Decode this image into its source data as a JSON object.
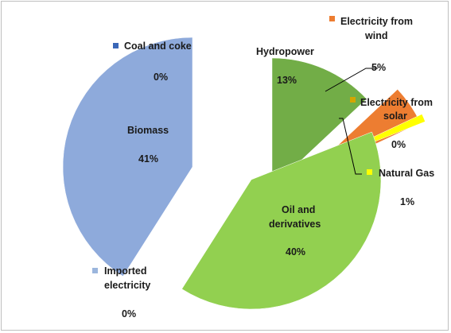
{
  "chart_data": {
    "type": "pie",
    "exploded": true,
    "slices": [
      {
        "label": "Coal and coke",
        "value": 0,
        "value_label": "0%",
        "color": "#3a67b8"
      },
      {
        "label": "Hydropower",
        "value": 13,
        "value_label": "13%",
        "color": "#72ad47"
      },
      {
        "label": "Electricity from wind",
        "value": 5,
        "value_label": "5%",
        "color": "#ed7d31"
      },
      {
        "label": "Electricity from solar",
        "value": 0,
        "value_label": "0%",
        "color": "#d4a500"
      },
      {
        "label": "Natural Gas",
        "value": 1,
        "value_label": "1%",
        "color": "#ffff00"
      },
      {
        "label": "Oil and derivatives",
        "value": 40,
        "value_label": "40%",
        "color": "#92d050"
      },
      {
        "label": "Imported electricity",
        "value": 0,
        "value_label": "0%",
        "color": "#9bb6dd"
      },
      {
        "label": "Biomass",
        "value": 41,
        "value_label": "41%",
        "color": "#8eaadb"
      }
    ]
  },
  "labels": {
    "coal_name": "Coal and coke",
    "coal_value": "0%",
    "hydro_name": "Hydropower",
    "hydro_value": "13%",
    "wind_name_line1": "Electricity from",
    "wind_name_line2": "wind",
    "wind_value": "5%",
    "solar_name_line1": "Electricity from",
    "solar_name_line2": "solar",
    "solar_value": "0%",
    "gas_name": "Natural Gas",
    "gas_value": "1%",
    "oil_name_line1": "Oil and",
    "oil_name_line2": "derivatives",
    "oil_value": "40%",
    "imported_name_line1": "Imported",
    "imported_name_line2": "electricity",
    "imported_value": "0%",
    "biomass_name": "Biomass",
    "biomass_value": "41%"
  }
}
